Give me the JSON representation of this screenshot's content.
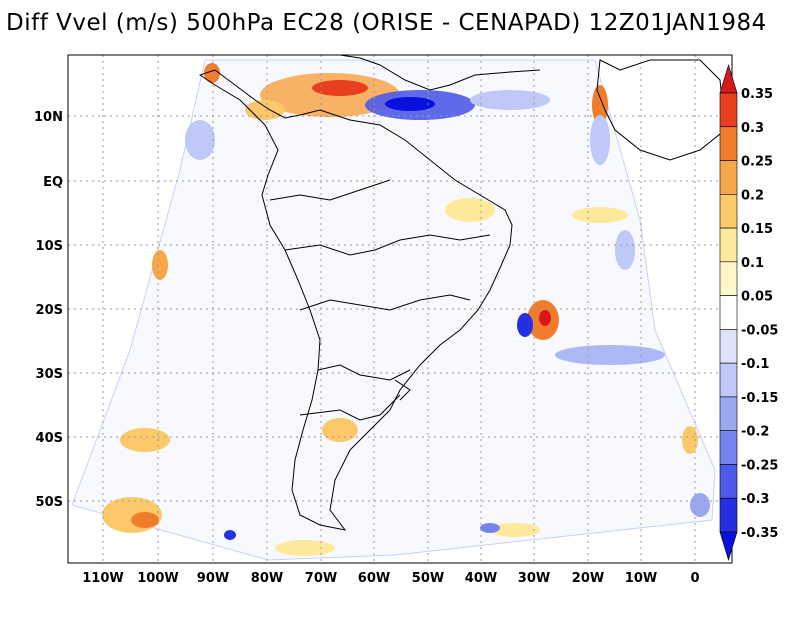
{
  "title": "Diff Vvel (m/s) 500hPa EC28 (ORISE - CENAPAD) 12Z01JAN1984",
  "lat_labels": [
    "10N",
    "EQ",
    "10S",
    "20S",
    "30S",
    "40S",
    "50S"
  ],
  "lon_labels": [
    "110W",
    "100W",
    "90W",
    "80W",
    "70W",
    "60W",
    "50W",
    "40W",
    "30W",
    "20W",
    "10W",
    "0"
  ],
  "colorbar": {
    "labels": [
      "0.35",
      "0.3",
      "0.25",
      "0.2",
      "0.15",
      "0.1",
      "0.05",
      "-0.05",
      "-0.1",
      "-0.15",
      "-0.2",
      "-0.25",
      "-0.3",
      "-0.35"
    ],
    "colors": [
      "#d7191c",
      "#e8401f",
      "#f07d2a",
      "#f7a748",
      "#fbc86a",
      "#fee99b",
      "#fff7c8",
      "#ffffff",
      "#dde3fb",
      "#bfc9f7",
      "#9aa8f2",
      "#7483ee",
      "#4e5ae9",
      "#2630e3",
      "#0a10dd"
    ]
  },
  "colors": {
    "positive": "#e04020",
    "negative": "#2a3be0",
    "grid": "#999999",
    "coast": "#000000"
  }
}
